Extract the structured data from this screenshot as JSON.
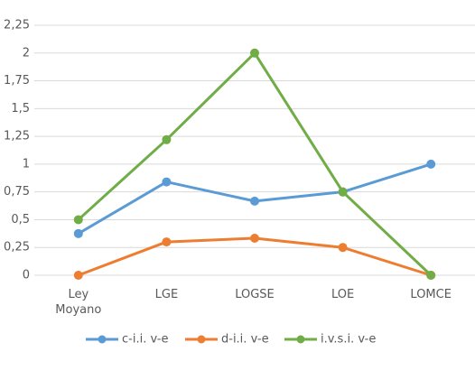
{
  "chart_data": {
    "type": "line",
    "categories": [
      "Ley Moyano",
      "LGE",
      "LOGSE",
      "LOE",
      "LOMCE"
    ],
    "series": [
      {
        "name": "c-i.i. v-e",
        "color": "#5b9bd5",
        "values": [
          0.375,
          0.84,
          0.667,
          0.75,
          1
        ]
      },
      {
        "name": "d-i.i. v-e",
        "color": "#ed7d31",
        "values": [
          0,
          0.3,
          0.333,
          0.25,
          0
        ]
      },
      {
        "name": "i.v.s.i. v-e",
        "color": "#70ad47",
        "values": [
          0.5,
          1.22,
          2,
          0.75,
          0
        ]
      }
    ],
    "ylim": [
      0,
      2.25
    ],
    "yticks": [
      0,
      {
        "value": 0.25,
        "label": "0,25"
      },
      {
        "value": 0.5,
        "label": "0,5"
      },
      {
        "value": 0.75,
        "label": "0,75"
      },
      1,
      {
        "value": 1.25,
        "label": "1,25"
      },
      {
        "value": 1.5,
        "label": "1,5"
      },
      {
        "value": 1.75,
        "label": "1,75"
      },
      2,
      {
        "value": 2.25,
        "label": "2,25"
      }
    ],
    "grid": true,
    "legend": "bottom"
  }
}
